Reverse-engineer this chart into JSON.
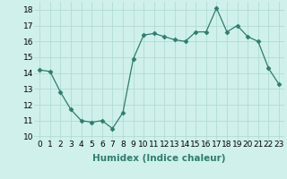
{
  "x": [
    0,
    1,
    2,
    3,
    4,
    5,
    6,
    7,
    8,
    9,
    10,
    11,
    12,
    13,
    14,
    15,
    16,
    17,
    18,
    19,
    20,
    21,
    22,
    23
  ],
  "y": [
    14.2,
    14.1,
    12.8,
    11.7,
    11.0,
    10.9,
    11.0,
    10.5,
    11.5,
    14.9,
    16.4,
    16.5,
    16.3,
    16.1,
    16.0,
    16.6,
    16.6,
    18.1,
    16.6,
    17.0,
    16.3,
    16.0,
    14.3,
    13.3
  ],
  "xlabel": "Humidex (Indice chaleur)",
  "ylim": [
    9.8,
    18.5
  ],
  "yticks": [
    10,
    11,
    12,
    13,
    14,
    15,
    16,
    17,
    18
  ],
  "xlim": [
    -0.5,
    23.5
  ],
  "line_color": "#2e7d6e",
  "marker": "D",
  "marker_size": 2.5,
  "bg_color": "#cff0eb",
  "grid_color": "#aad8d0",
  "xlabel_fontsize": 7.5,
  "tick_fontsize": 6.5,
  "linewidth": 0.9
}
